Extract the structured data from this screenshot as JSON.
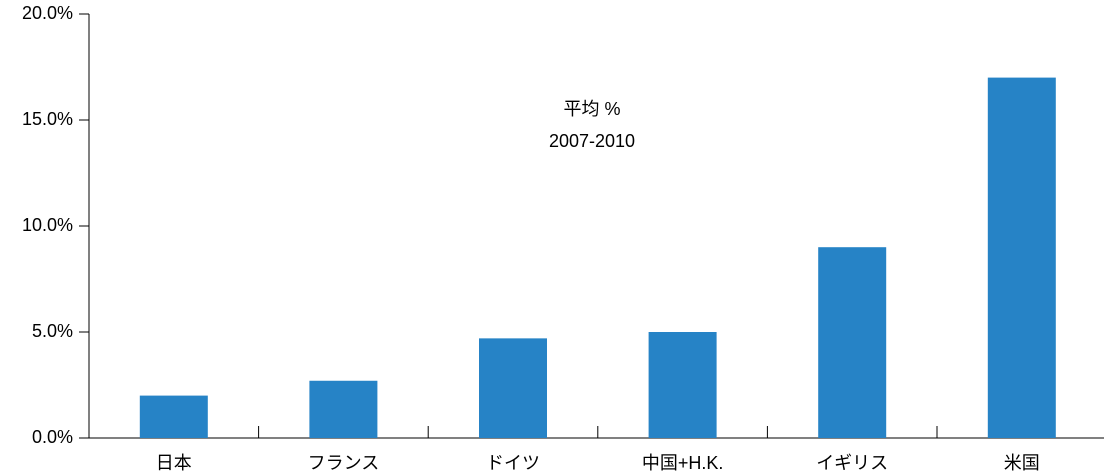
{
  "chart_data": {
    "type": "bar",
    "categories": [
      "日本",
      "フランス",
      "ドイツ",
      "中国+H.K.",
      "イギリス",
      "米国"
    ],
    "values": [
      2.0,
      2.7,
      4.7,
      5.0,
      9.0,
      17.0
    ],
    "color": "#2683c6",
    "ylim": [
      0,
      20
    ],
    "yticks": [
      {
        "value": 0,
        "label": "0.0%"
      },
      {
        "value": 5,
        "label": "5.0%"
      },
      {
        "value": 10,
        "label": "10.0%"
      },
      {
        "value": 15,
        "label": "15.0%"
      },
      {
        "value": 20,
        "label": "20.0%"
      }
    ],
    "annotations": [
      "平均 %",
      "2007-2010"
    ],
    "grid": false
  }
}
